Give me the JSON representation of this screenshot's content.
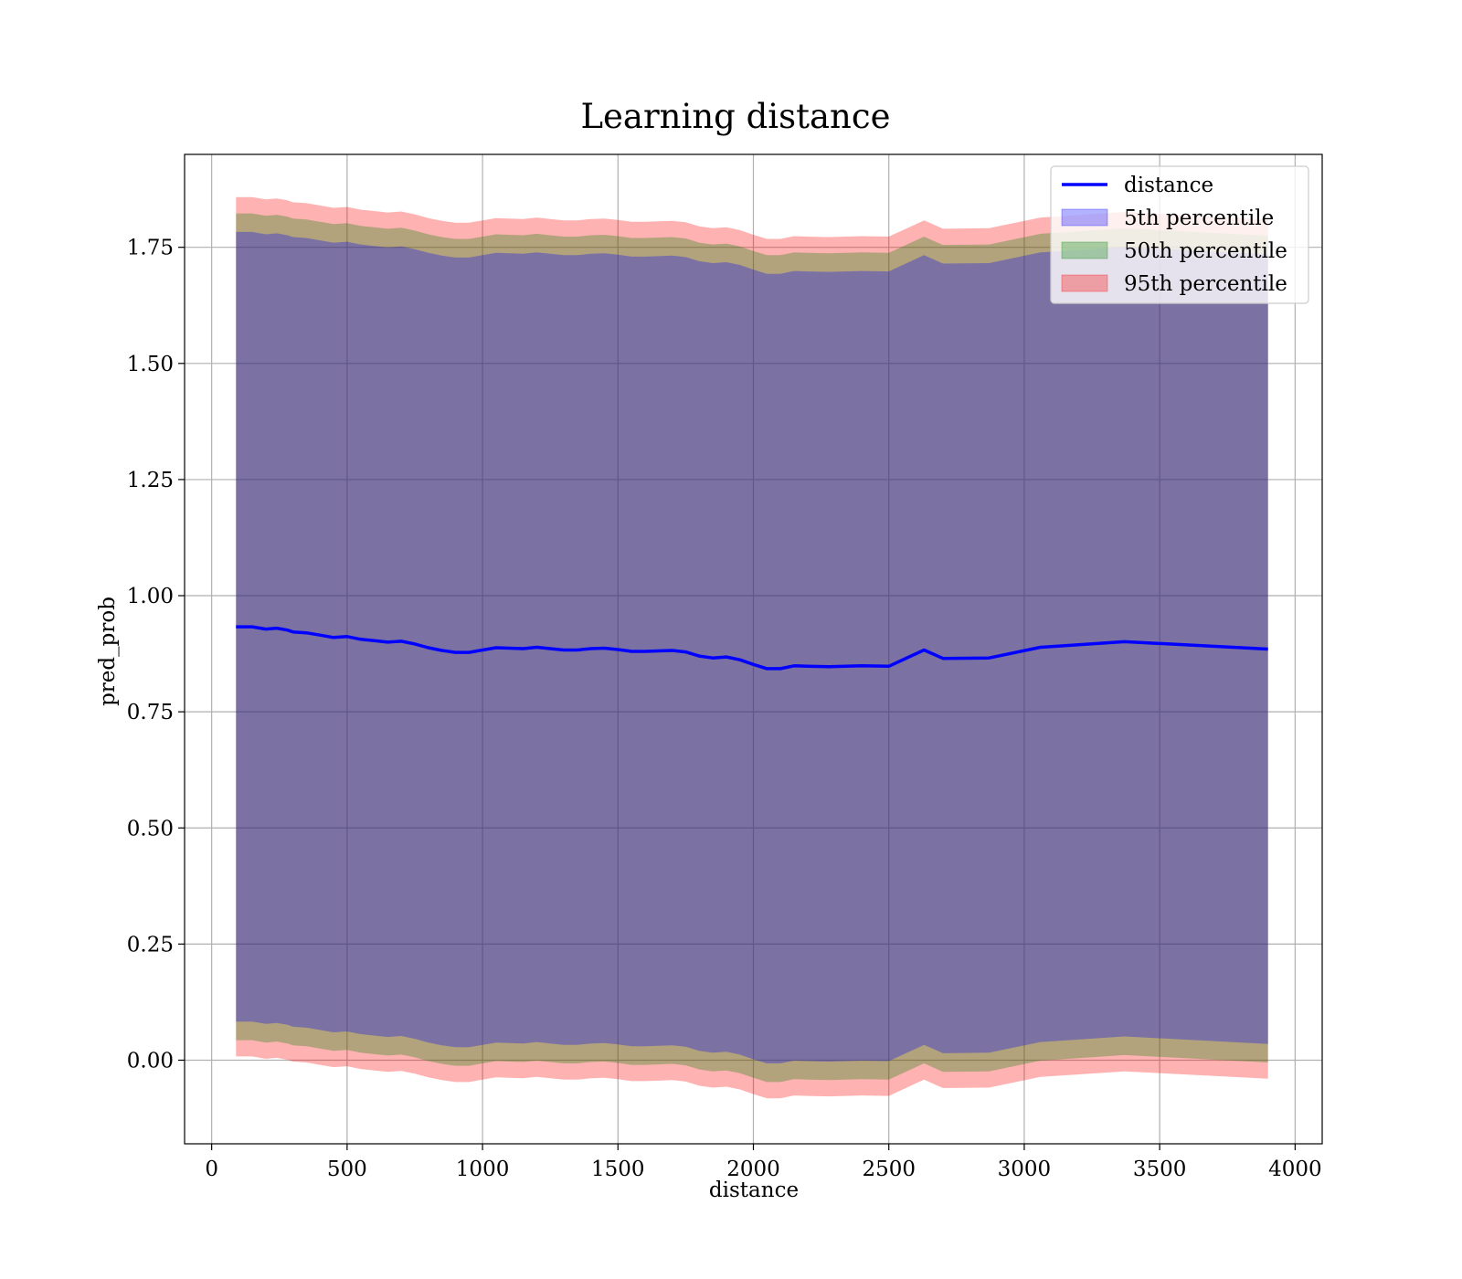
{
  "chart_data": {
    "type": "area",
    "title": "Learning distance",
    "xlabel": "distance",
    "ylabel": "pred_prob",
    "xlim": [
      -100,
      4100
    ],
    "ylim": [
      -0.18,
      1.95
    ],
    "xticks": [
      0,
      500,
      1000,
      1500,
      2000,
      2500,
      3000,
      3500,
      4000
    ],
    "xtick_labels": [
      "0",
      "500",
      "1000",
      "1500",
      "2000",
      "2500",
      "3000",
      "3500",
      "4000"
    ],
    "yticks": [
      0.0,
      0.25,
      0.5,
      0.75,
      1.0,
      1.25,
      1.5,
      1.75
    ],
    "ytick_labels": [
      "0.00",
      "0.25",
      "0.50",
      "0.75",
      "1.00",
      "1.25",
      "1.50",
      "1.75"
    ],
    "grid": true,
    "legend_position": "upper right",
    "x": [
      90,
      150,
      200,
      240,
      280,
      300,
      350,
      400,
      450,
      500,
      550,
      600,
      650,
      700,
      750,
      800,
      850,
      900,
      950,
      1000,
      1050,
      1100,
      1150,
      1200,
      1250,
      1300,
      1350,
      1400,
      1450,
      1500,
      1550,
      1600,
      1650,
      1700,
      1750,
      1800,
      1850,
      1900,
      1950,
      2000,
      2050,
      2100,
      2150,
      2200,
      2280,
      2400,
      2500,
      2630,
      2700,
      2870,
      3060,
      3370,
      3900
    ],
    "series": [
      {
        "name": "distance",
        "kind": "line",
        "color": "#0000ff",
        "values": [
          0.933,
          0.933,
          0.928,
          0.93,
          0.926,
          0.922,
          0.92,
          0.915,
          0.91,
          0.912,
          0.906,
          0.903,
          0.9,
          0.902,
          0.896,
          0.888,
          0.882,
          0.878,
          0.878,
          0.883,
          0.888,
          0.887,
          0.886,
          0.889,
          0.886,
          0.883,
          0.883,
          0.886,
          0.887,
          0.884,
          0.88,
          0.88,
          0.881,
          0.882,
          0.879,
          0.87,
          0.866,
          0.868,
          0.862,
          0.852,
          0.843,
          0.843,
          0.849,
          0.848,
          0.847,
          0.849,
          0.848,
          0.883,
          0.865,
          0.866,
          0.889,
          0.901,
          0.885
        ]
      },
      {
        "name": "5th percentile",
        "kind": "band",
        "color": "#0000ff",
        "lower": [
          0.083,
          0.083,
          0.078,
          0.08,
          0.076,
          0.072,
          0.07,
          0.065,
          0.06,
          0.062,
          0.056,
          0.053,
          0.05,
          0.052,
          0.046,
          0.038,
          0.032,
          0.028,
          0.028,
          0.033,
          0.038,
          0.037,
          0.036,
          0.039,
          0.036,
          0.033,
          0.033,
          0.036,
          0.037,
          0.034,
          0.03,
          0.03,
          0.031,
          0.032,
          0.029,
          0.02,
          0.016,
          0.018,
          0.012,
          0.002,
          -0.007,
          -0.007,
          -0.001,
          -0.002,
          -0.003,
          -0.001,
          -0.002,
          0.033,
          0.015,
          0.016,
          0.039,
          0.051,
          0.035
        ],
        "upper": [
          1.783,
          1.783,
          1.778,
          1.78,
          1.776,
          1.772,
          1.77,
          1.765,
          1.76,
          1.762,
          1.756,
          1.753,
          1.75,
          1.752,
          1.746,
          1.738,
          1.732,
          1.728,
          1.728,
          1.733,
          1.738,
          1.737,
          1.736,
          1.739,
          1.736,
          1.733,
          1.733,
          1.736,
          1.737,
          1.734,
          1.73,
          1.73,
          1.731,
          1.732,
          1.729,
          1.72,
          1.716,
          1.718,
          1.712,
          1.702,
          1.693,
          1.693,
          1.699,
          1.698,
          1.697,
          1.699,
          1.698,
          1.733,
          1.715,
          1.716,
          1.739,
          1.751,
          1.735
        ]
      },
      {
        "name": "50th percentile",
        "kind": "band",
        "color": "#008000",
        "lower": [
          0.043,
          0.043,
          0.038,
          0.04,
          0.036,
          0.032,
          0.03,
          0.025,
          0.02,
          0.022,
          0.016,
          0.013,
          0.01,
          0.012,
          0.006,
          -0.002,
          -0.008,
          -0.012,
          -0.012,
          -0.007,
          -0.002,
          -0.003,
          -0.004,
          -0.001,
          -0.004,
          -0.007,
          -0.007,
          -0.004,
          -0.003,
          -0.006,
          -0.01,
          -0.01,
          -0.009,
          -0.008,
          -0.011,
          -0.02,
          -0.024,
          -0.022,
          -0.028,
          -0.038,
          -0.047,
          -0.047,
          -0.041,
          -0.042,
          -0.043,
          -0.041,
          -0.042,
          -0.007,
          -0.025,
          -0.024,
          -0.001,
          0.011,
          -0.005
        ],
        "upper": [
          1.823,
          1.823,
          1.818,
          1.82,
          1.816,
          1.812,
          1.81,
          1.805,
          1.8,
          1.802,
          1.796,
          1.793,
          1.79,
          1.792,
          1.786,
          1.778,
          1.772,
          1.768,
          1.768,
          1.773,
          1.778,
          1.777,
          1.776,
          1.779,
          1.776,
          1.773,
          1.773,
          1.776,
          1.777,
          1.774,
          1.77,
          1.77,
          1.771,
          1.772,
          1.769,
          1.76,
          1.756,
          1.758,
          1.752,
          1.742,
          1.733,
          1.733,
          1.739,
          1.738,
          1.737,
          1.739,
          1.738,
          1.773,
          1.755,
          1.756,
          1.779,
          1.791,
          1.775
        ]
      },
      {
        "name": "95th percentile",
        "kind": "band",
        "color": "#ff0000",
        "lower": [
          0.008,
          0.008,
          0.003,
          0.005,
          0.001,
          -0.003,
          -0.005,
          -0.01,
          -0.015,
          -0.013,
          -0.019,
          -0.022,
          -0.025,
          -0.023,
          -0.029,
          -0.037,
          -0.043,
          -0.047,
          -0.047,
          -0.042,
          -0.037,
          -0.038,
          -0.039,
          -0.036,
          -0.039,
          -0.042,
          -0.042,
          -0.039,
          -0.038,
          -0.041,
          -0.045,
          -0.045,
          -0.044,
          -0.043,
          -0.046,
          -0.055,
          -0.059,
          -0.057,
          -0.063,
          -0.073,
          -0.082,
          -0.082,
          -0.076,
          -0.077,
          -0.078,
          -0.076,
          -0.077,
          -0.042,
          -0.06,
          -0.059,
          -0.036,
          -0.024,
          -0.04
        ],
        "upper": [
          1.858,
          1.858,
          1.853,
          1.855,
          1.851,
          1.847,
          1.845,
          1.84,
          1.835,
          1.837,
          1.831,
          1.828,
          1.825,
          1.827,
          1.821,
          1.813,
          1.807,
          1.803,
          1.803,
          1.808,
          1.813,
          1.812,
          1.811,
          1.814,
          1.811,
          1.808,
          1.808,
          1.811,
          1.812,
          1.809,
          1.805,
          1.805,
          1.806,
          1.807,
          1.804,
          1.795,
          1.791,
          1.793,
          1.787,
          1.777,
          1.768,
          1.768,
          1.774,
          1.773,
          1.772,
          1.774,
          1.773,
          1.808,
          1.79,
          1.791,
          1.814,
          1.826,
          1.81
        ]
      }
    ]
  }
}
